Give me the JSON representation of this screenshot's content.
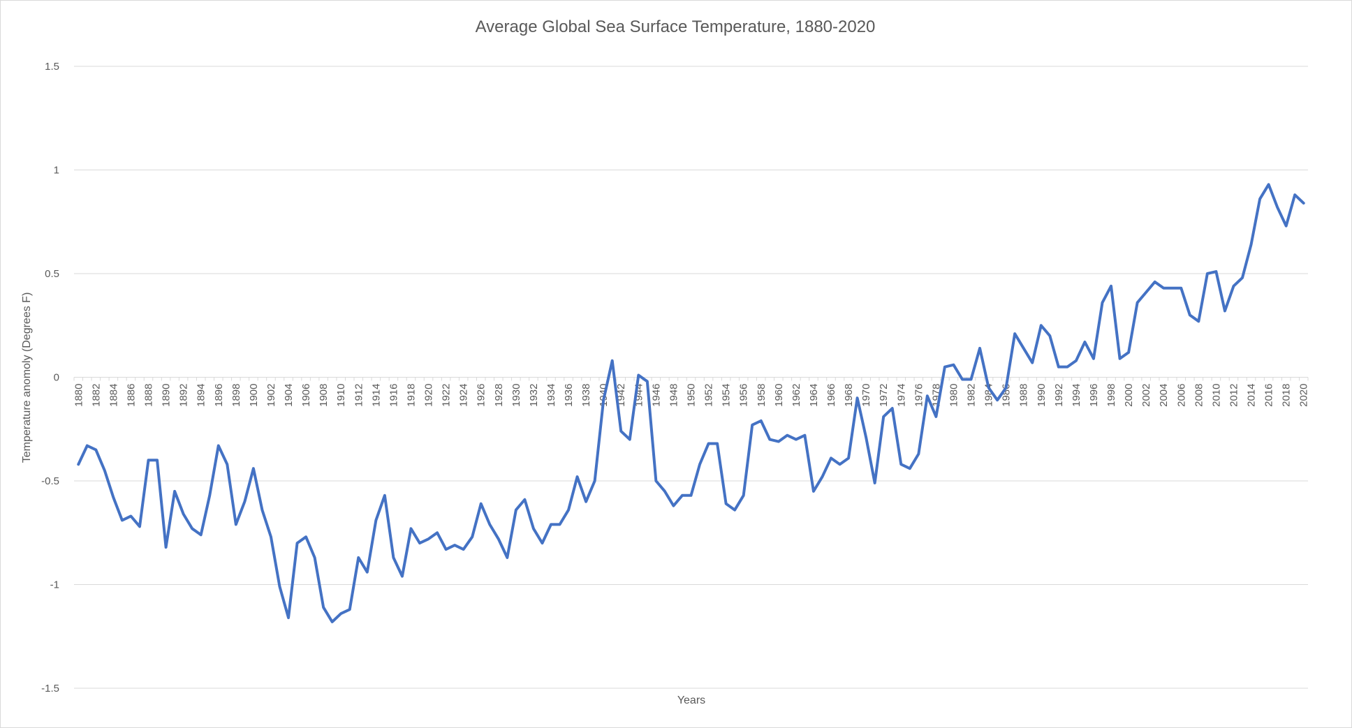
{
  "chart_data": {
    "type": "line",
    "title": "Average Global Sea Surface Temperature, 1880-2020",
    "xlabel": "Years",
    "ylabel": "Temperature anomoly (Degrees F)",
    "ylim": [
      -1.5,
      1.5
    ],
    "yticks": [
      1.5,
      1,
      0.5,
      0,
      -0.5,
      -1,
      -1.5
    ],
    "ytick_labels": [
      "1.5",
      "1",
      "0.5",
      "0",
      "-0.5",
      "-1",
      "-1.5"
    ],
    "grid": true,
    "line_color": "#4472c4",
    "x_label_every": 2,
    "series": [
      {
        "name": "Temperature anomaly",
        "values": [
          -0.42,
          -0.33,
          -0.35,
          -0.45,
          -0.58,
          -0.69,
          -0.67,
          -0.72,
          -0.4,
          -0.4,
          -0.82,
          -0.55,
          -0.66,
          -0.73,
          -0.76,
          -0.57,
          -0.33,
          -0.42,
          -0.71,
          -0.6,
          -0.44,
          -0.64,
          -0.77,
          -1.01,
          -1.16,
          -0.8,
          -0.77,
          -0.87,
          -1.11,
          -1.18,
          -1.14,
          -1.12,
          -0.87,
          -0.94,
          -0.69,
          -0.57,
          -0.87,
          -0.96,
          -0.73,
          -0.8,
          -0.78,
          -0.75,
          -0.83,
          -0.81,
          -0.83,
          -0.77,
          -0.61,
          -0.71,
          -0.78,
          -0.87,
          -0.64,
          -0.59,
          -0.73,
          -0.8,
          -0.71,
          -0.71,
          -0.64,
          -0.48,
          -0.6,
          -0.5,
          -0.11,
          0.08,
          -0.26,
          -0.3,
          0.01,
          -0.02,
          -0.5,
          -0.55,
          -0.62,
          -0.57,
          -0.57,
          -0.42,
          -0.32,
          -0.32,
          -0.61,
          -0.64,
          -0.57,
          -0.23,
          -0.21,
          -0.3,
          -0.31,
          -0.28,
          -0.3,
          -0.28,
          -0.55,
          -0.48,
          -0.39,
          -0.42,
          -0.39,
          -0.1,
          -0.29,
          -0.51,
          -0.19,
          -0.15,
          -0.42,
          -0.44,
          -0.37,
          -0.09,
          -0.19,
          0.05,
          0.06,
          -0.01,
          -0.01,
          0.14,
          -0.05,
          -0.11,
          -0.05,
          0.21,
          0.14,
          0.07,
          0.25,
          0.2,
          0.05,
          0.05,
          0.08,
          0.17,
          0.09,
          0.36,
          0.44,
          0.09,
          0.12,
          0.36,
          0.41,
          0.46,
          0.43,
          0.43,
          0.43,
          0.3,
          0.27,
          0.5,
          0.51,
          0.32,
          0.44,
          0.48,
          0.64,
          0.86,
          0.93,
          0.82,
          0.73,
          0.88,
          0.84
        ]
      }
    ],
    "x_start": 1880,
    "x_end": 2020
  }
}
